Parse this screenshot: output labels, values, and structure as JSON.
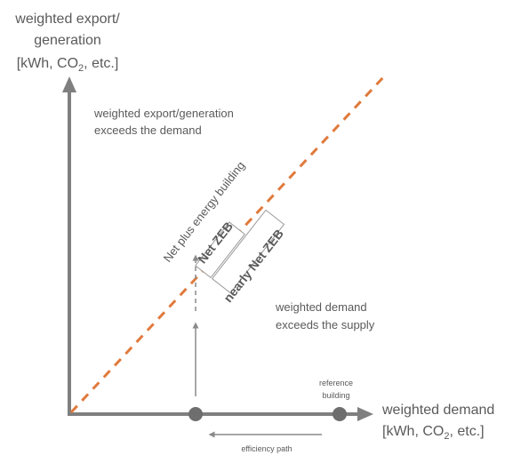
{
  "y_axis": {
    "line1": "weighted export/",
    "line2": "generation",
    "line3_prefix": "[kWh, CO",
    "line3_sub": "2",
    "line3_suffix": ", etc.]"
  },
  "x_axis": {
    "line1": "weighted demand",
    "line2_prefix": "[kWh, CO",
    "line2_sub": "2",
    "line2_suffix": ", etc.]"
  },
  "upper_region": {
    "line1": "weighted export/generation",
    "line2": "exceeds the demand"
  },
  "lower_region": {
    "line1": "weighted demand",
    "line2": "exceeds the supply"
  },
  "diagonal_label": "Net plus energy building",
  "net_zeb_label": "Net ZEB",
  "nearly_net_zeb_label": "nearly Net ZEB",
  "reference": {
    "line1": "reference",
    "line2": "building"
  },
  "efficiency_path_label": "efficiency path",
  "colors": {
    "axis": "#7f7f7f",
    "diagonal": "#e07a3c",
    "text": "#5a5a5a",
    "dot": "#6e6e6e"
  }
}
